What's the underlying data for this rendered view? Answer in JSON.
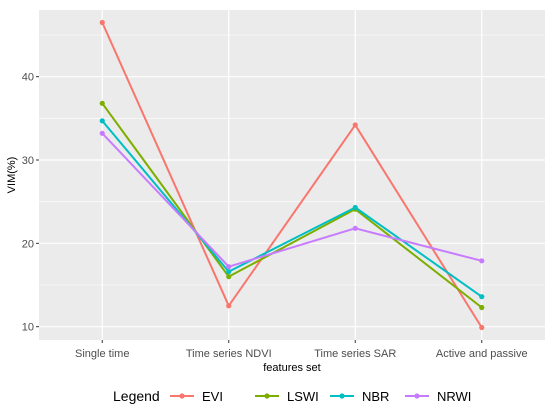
{
  "chart_data": {
    "type": "line",
    "categories": [
      "Single time",
      "Time series NDVI",
      "Time series SAR",
      "Active and passive"
    ],
    "series": [
      {
        "name": "EVI",
        "color": "#F8766D",
        "values": [
          46.5,
          12.5,
          34.2,
          9.9
        ]
      },
      {
        "name": "LSWI",
        "color": "#7CAE00",
        "values": [
          36.8,
          16.0,
          24.1,
          12.3
        ]
      },
      {
        "name": "NBR",
        "color": "#00BFC4",
        "values": [
          34.7,
          16.6,
          24.3,
          13.6
        ]
      },
      {
        "name": "NRWI",
        "color": "#C77CFF",
        "values": [
          33.2,
          17.2,
          21.8,
          17.9
        ]
      }
    ],
    "xlabel": "features set",
    "ylabel": "VIM(%)",
    "ylim": [
      8.4,
      48.0
    ],
    "yticks": [
      10,
      20,
      30,
      40
    ],
    "grid": true,
    "legend": {
      "title": "Legend",
      "position": "bottom"
    },
    "panel_color": "#EBEBEB",
    "grid_color": "#FFFFFF"
  }
}
